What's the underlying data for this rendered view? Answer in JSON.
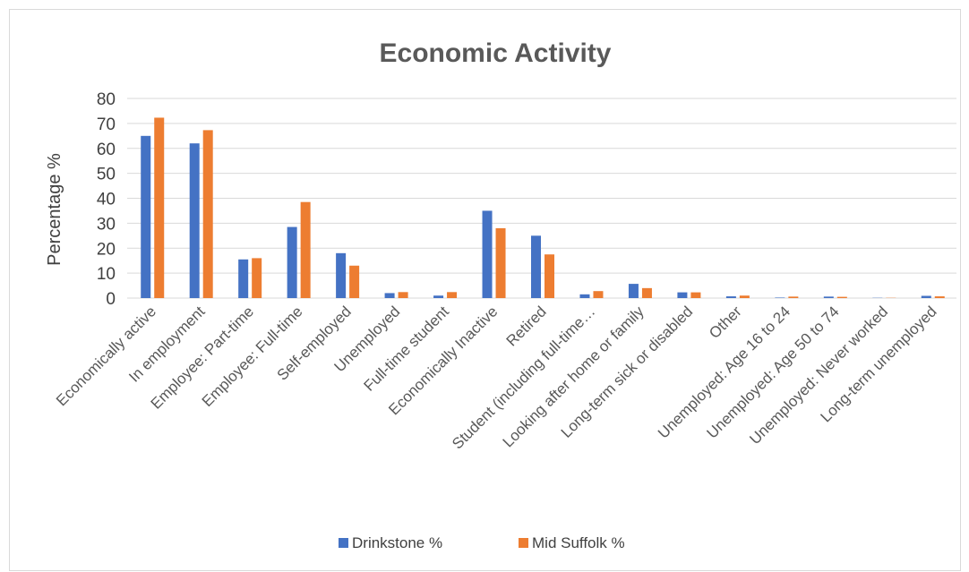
{
  "chart_data": {
    "type": "bar",
    "title": "Economic Activity",
    "xlabel": "",
    "ylabel": "Percentage %",
    "ylim": [
      0,
      80
    ],
    "yticks": [
      "0",
      "10",
      "20",
      "30",
      "40",
      "50",
      "60",
      "70",
      "80"
    ],
    "grid": true,
    "legend_position": "bottom",
    "categories": [
      "Economically active",
      "In employment",
      "Employee: Part-time",
      "Employee: Full-time",
      "Self-employed",
      "Unemployed",
      "Full-time student",
      "Economically Inactive",
      "Retired",
      "Student (including full-time…",
      "Looking after home or family",
      "Long-term sick or disabled",
      "Other",
      "Unemployed: Age 16 to 24",
      "Unemployed: Age 50 to 74",
      "Unemployed: Never worked",
      "Long-term unemployed"
    ],
    "series": [
      {
        "name": "Drinkstone %",
        "color": "#4472C4",
        "values": [
          65,
          62,
          15.5,
          28.5,
          18,
          2,
          1,
          35,
          25,
          1.5,
          5.7,
          2.3,
          0.7,
          0.2,
          0.6,
          0.1,
          0.9
        ]
      },
      {
        "name": "Mid Suffolk %",
        "color": "#ED7D31",
        "values": [
          72.3,
          67.3,
          16,
          38.5,
          13,
          2.4,
          2.4,
          28,
          17.5,
          2.8,
          4,
          2.3,
          1,
          0.6,
          0.5,
          0.1,
          0.7
        ]
      }
    ]
  }
}
